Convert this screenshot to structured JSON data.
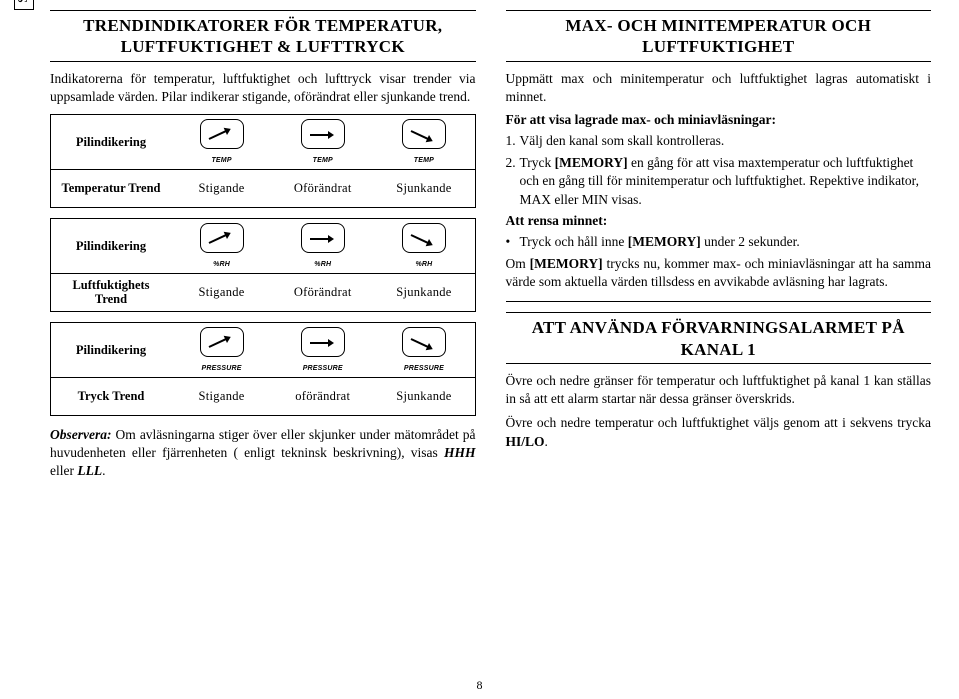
{
  "lang": "SV",
  "pagenum": "8",
  "left": {
    "title": "TRENDINDIKATORER FÖR TEMPERATUR, LUFTFUKTIGHET & LUFTTRYCK",
    "intro": "Indikatorerna för temperatur, luftfuktighet och lufttryck visar trender via uppsamlade värden. Pilar indikerar stigande, oförändrat eller sjunkande trend.",
    "col_labels": [
      "Stigande",
      "Oförändrat",
      "Sjunkande"
    ],
    "col_labels_lc": [
      "Stigande",
      "oförändrat",
      "Sjunkande"
    ],
    "row_labels": {
      "arrow": "Pilindikering",
      "temp": "Temperatur Trend",
      "humidity": "Luftfuktighets Trend",
      "pressure": "Tryck Trend"
    },
    "icon_units": {
      "temp": "TEMP",
      "humidity": "%RH",
      "pressure": "PRESSURE"
    },
    "note_prefix": "Observera:",
    "note": " Om avläsningarna stiger över eller skjunker under mätområdet på huvudenheten eller fjärrenheten ( enligt tekninsk beskrivning), visas ",
    "note_hhh": "HHH",
    "note_or": " eller ",
    "note_lll": "LLL",
    "note_end": "."
  },
  "right": {
    "sec1_title": "MAX- OCH MINITEMPERATUR OCH LUFTFUKTIGHET",
    "p1": "Uppmätt max och minitemperatur och luftfuktighet lagras automatiskt i minnet.",
    "p2": "För att visa lagrade max- och miniavläsningar:",
    "li1": "Välj den kanal som skall kontrolleras.",
    "li2a": "Tryck ",
    "li2_mem": "[MEMORY]",
    "li2b": " en gång för att visa maxtemperatur och luftfuktighet och en gång till för minitemperatur och luftfuktighet. Repektive indikator, MAX eller MIN visas.",
    "p3": "Att rensa minnet:",
    "b1a": "Tryck och håll inne ",
    "b1_mem": "[MEMORY]",
    "b1b": " under 2 sekunder.",
    "p4a": "Om ",
    "p4_mem": "[MEMORY]",
    "p4b": " trycks nu, kommer max- och miniavläsningar att ha samma värde som aktuella värden tillsdess en avvikabde avläsning har lagrats.",
    "sec2_title": "ATT ANVÄNDA FÖRVARNINGSALARMET PÅ KANAL 1",
    "s2p1": "Övre och nedre gränser för temperatur och luftfuktighet på kanal 1 kan ställas in så att ett alarm startar när dessa gränser överskrids.",
    "s2p2a": "Övre och nedre temperatur och luftfuktighet väljs genom att i sekvens trycka ",
    "s2_hilo": "HI/LO",
    "s2p2b": "."
  }
}
